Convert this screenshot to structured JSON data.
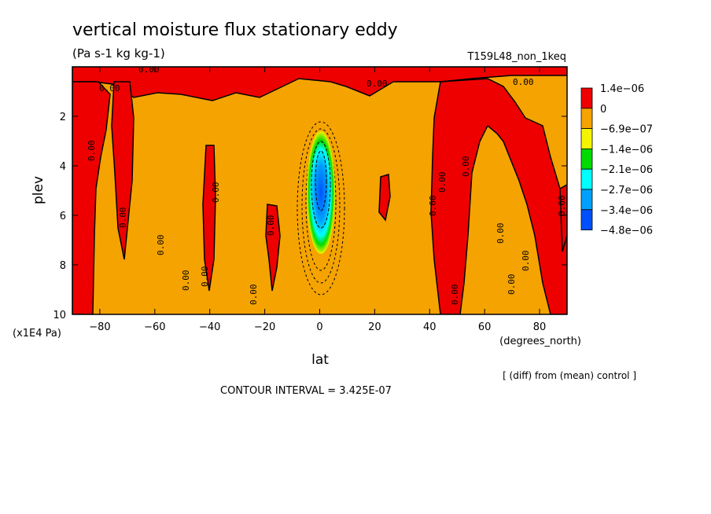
{
  "chart_data": {
    "type": "heatmap",
    "title": "vertical moisture flux stationary eddy",
    "subtitle": "(Pa s-1 kg kg-1)",
    "experiment": "T159L48_non_1keq",
    "xlabel": "lat",
    "x_units": "(degrees_north)",
    "ylabel": "plev",
    "y_units": "(x1E4 Pa)",
    "xlim": [
      -90,
      90
    ],
    "ylim": [
      10,
      0
    ],
    "x_ticks": [
      -80,
      -60,
      -40,
      -20,
      0,
      20,
      40,
      60,
      80
    ],
    "y_ticks": [
      2,
      4,
      6,
      8,
      10
    ],
    "legend": {
      "placement": "right",
      "levels": [
        {
          "label": "1.4e-06",
          "color": "#ee0000"
        },
        {
          "label": "0",
          "color": "#f5a300"
        },
        {
          "label": "-6.9e-07",
          "color": "#f5f500"
        },
        {
          "label": "-1.4e-06",
          "color": "#00dc00"
        },
        {
          "label": "-2.1e-06",
          "color": "#00ffff"
        },
        {
          "label": "-2.7e-06",
          "color": "#00a0ff"
        },
        {
          "label": "-3.4e-06",
          "color": "#0050ff"
        },
        {
          "label": "-4.8e-06",
          "color": null
        }
      ]
    },
    "contour_label": "0.00",
    "note": "[ (diff) from (mean) control ]",
    "contour_interval_text": "CONTOUR INTERVAL = 3.425E-07"
  }
}
